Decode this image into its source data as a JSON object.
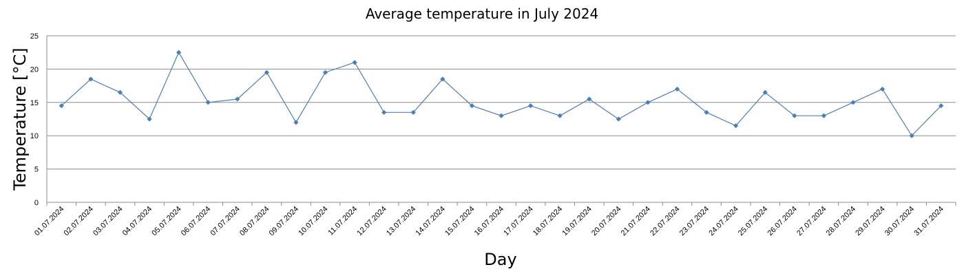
{
  "chart_data": {
    "type": "line",
    "title": "Average temperature in July 2024",
    "xlabel": "Day",
    "ylabel": "Temperature [°C]",
    "ylim": [
      0,
      25
    ],
    "yticks": [
      0,
      5,
      10,
      15,
      20,
      25
    ],
    "grid": "horizontal",
    "legend": "none",
    "colors": {
      "series": "#4a7ebb",
      "marker": "#4a7ebb",
      "grid": "#8c8c8c",
      "axis": "#8c8c8c"
    },
    "categories": [
      "01.07.2024",
      "02.07.2024",
      "03.07.2024",
      "04.07.2024",
      "05.07.2024",
      "06.07.2024",
      "07.07.2024",
      "08.07.2024",
      "09.07.2024",
      "10.07.2024",
      "11.07.2024",
      "12.07.2024",
      "13.07.2024",
      "14.07.2024",
      "15.07.2024",
      "16.07.2024",
      "17.07.2024",
      "18.07.2024",
      "19.07.2024",
      "20.07.2024",
      "21.07.2024",
      "22.07.2024",
      "23.07.2024",
      "24.07.2024",
      "25.07.2024",
      "26.07.2024",
      "27.07.2024",
      "28.07.2024",
      "29.07.2024",
      "30.07.2024",
      "31.07.2024"
    ],
    "series": [
      {
        "values": [
          14.5,
          18.5,
          16.5,
          12.5,
          22.5,
          15,
          15.5,
          19.5,
          12,
          19.5,
          21,
          13.5,
          13.5,
          18.5,
          14.5,
          13,
          14.5,
          13,
          15.5,
          12.5,
          15,
          17,
          13.5,
          11.5,
          16.5,
          13,
          13,
          15,
          17,
          10,
          14.5
        ]
      }
    ]
  }
}
